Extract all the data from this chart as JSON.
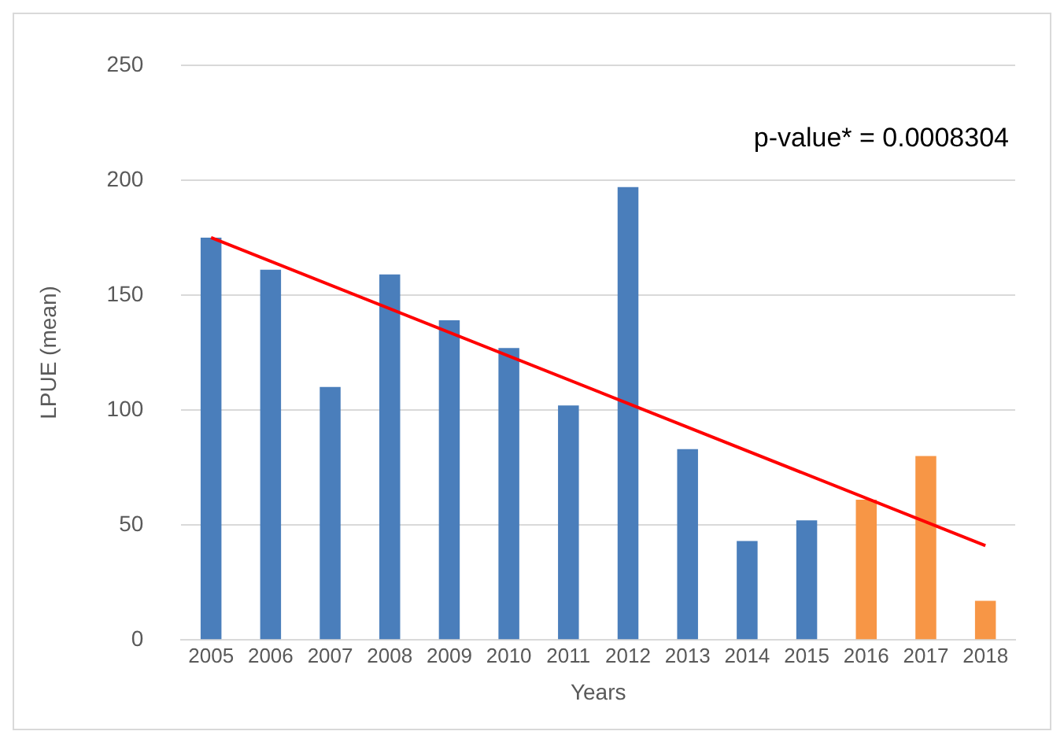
{
  "chart_data": {
    "type": "bar",
    "xlabel": "Years",
    "ylabel": "LPUE (mean)",
    "categories": [
      "2005",
      "2006",
      "2007",
      "2008",
      "2009",
      "2010",
      "2011",
      "2012",
      "2013",
      "2014",
      "2015",
      "2016",
      "2017",
      "2018"
    ],
    "series": [
      {
        "values": [
          175,
          161,
          110,
          159,
          139,
          127,
          102,
          197,
          83,
          43,
          52,
          61,
          80,
          17
        ],
        "colors": [
          "#4a7ebb",
          "#4a7ebb",
          "#4a7ebb",
          "#4a7ebb",
          "#4a7ebb",
          "#4a7ebb",
          "#4a7ebb",
          "#4a7ebb",
          "#4a7ebb",
          "#4a7ebb",
          "#4a7ebb",
          "#f79646",
          "#f79646",
          "#f79646"
        ]
      },
      {
        "type": "line",
        "values": [
          175,
          null,
          null,
          null,
          null,
          null,
          null,
          null,
          null,
          null,
          null,
          null,
          null,
          41
        ],
        "color": "#ff0000"
      }
    ],
    "ylim": [
      0,
      250
    ],
    "yticks": [
      0,
      50,
      100,
      150,
      200,
      250
    ],
    "grid": "y",
    "legend": false,
    "annotations": [
      "p-value* = 0.0008304"
    ]
  }
}
